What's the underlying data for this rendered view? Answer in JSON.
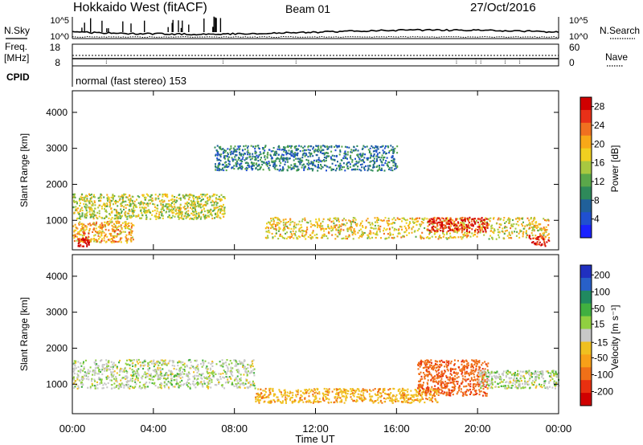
{
  "header": {
    "radar_title": "Hokkaido West (fitACF)",
    "beam": "Beam 01",
    "date": "27/Oct/2016"
  },
  "status_panel": {
    "nsky_label": "N.Sky",
    "nsearch_label": "N.Search",
    "noise_tick_high": "10^5",
    "noise_tick_low": "10^0",
    "freq_label_line1": "Freq.",
    "freq_label_line2": "[MHz]",
    "freq_tick_high": "18",
    "freq_tick_low": "8",
    "nave_label": "Nave",
    "nave_tick_high": "60",
    "nave_tick_low": "0",
    "cpid_label": "CPID",
    "cpid_text": "normal (fast stereo) 153"
  },
  "chart_data": [
    {
      "type": "heatmap",
      "panel": "power",
      "ylabel": "Slant Range [km]",
      "xlabel": "Time UT",
      "x_ticks": [
        "00:00",
        "04:00",
        "08:00",
        "12:00",
        "16:00",
        "20:00",
        "00:00"
      ],
      "y_ticks": [
        1000,
        2000,
        3000,
        4000
      ],
      "ylim": [
        180,
        4600
      ],
      "x_range_hours": [
        0,
        24
      ],
      "colorbar": {
        "label": "Power [dB]",
        "ticks": [
          4,
          8,
          12,
          16,
          20,
          24,
          28
        ],
        "range": [
          0,
          30
        ],
        "colors": [
          "#1a22ff",
          "#2050d0",
          "#20609a",
          "#2e8a5a",
          "#5aa84a",
          "#a8c840",
          "#f0d020",
          "#f8a818",
          "#f07020",
          "#e83018",
          "#d00000"
        ]
      },
      "echo_regions": [
        {
          "t0": 0.0,
          "t1": 7.5,
          "r0": 1050,
          "r1": 1750,
          "power": 16
        },
        {
          "t0": 0.0,
          "t1": 3.0,
          "r0": 400,
          "r1": 1000,
          "power": 20
        },
        {
          "t0": 0.2,
          "t1": 0.8,
          "r0": 300,
          "r1": 550,
          "power": 30
        },
        {
          "t0": 9.5,
          "t1": 23.5,
          "r0": 500,
          "r1": 1100,
          "power": 18
        },
        {
          "t0": 17.5,
          "t1": 20.5,
          "r0": 700,
          "r1": 1100,
          "power": 28
        },
        {
          "t0": 22.5,
          "t1": 23.5,
          "r0": 300,
          "r1": 600,
          "power": 28
        },
        {
          "t0": 7.0,
          "t1": 16.0,
          "r0": 2400,
          "r1": 3100,
          "power": 8
        }
      ]
    },
    {
      "type": "heatmap",
      "panel": "velocity",
      "ylabel": "Slant Range [km]",
      "xlabel": "Time UT",
      "x_ticks": [
        "00:00",
        "04:00",
        "08:00",
        "12:00",
        "16:00",
        "20:00",
        "00:00"
      ],
      "y_ticks": [
        1000,
        2000,
        3000,
        4000
      ],
      "ylim": [
        180,
        4600
      ],
      "x_range_hours": [
        0,
        24
      ],
      "colorbar": {
        "label": "Velocity [m s⁻¹]",
        "ticks": [
          "200",
          "100",
          "50",
          "15",
          "-15",
          "-50",
          "-100",
          "-200"
        ],
        "colors": [
          "#2030c0",
          "#2860c8",
          "#208a60",
          "#40b040",
          "#90d040",
          "#c8c8c8",
          "#f0c020",
          "#f8a018",
          "#f07018",
          "#e83010",
          "#d00000"
        ]
      },
      "echo_regions": [
        {
          "t0": 0.0,
          "t1": 9.0,
          "r0": 900,
          "r1": 1700,
          "velocity": 0
        },
        {
          "t0": 9.0,
          "t1": 18.0,
          "r0": 500,
          "r1": 900,
          "velocity": -40
        },
        {
          "t0": 17.0,
          "t1": 20.5,
          "r0": 700,
          "r1": 1700,
          "velocity": -90
        },
        {
          "t0": 20.0,
          "t1": 24.0,
          "r0": 900,
          "r1": 1400,
          "velocity": 0
        }
      ]
    }
  ]
}
